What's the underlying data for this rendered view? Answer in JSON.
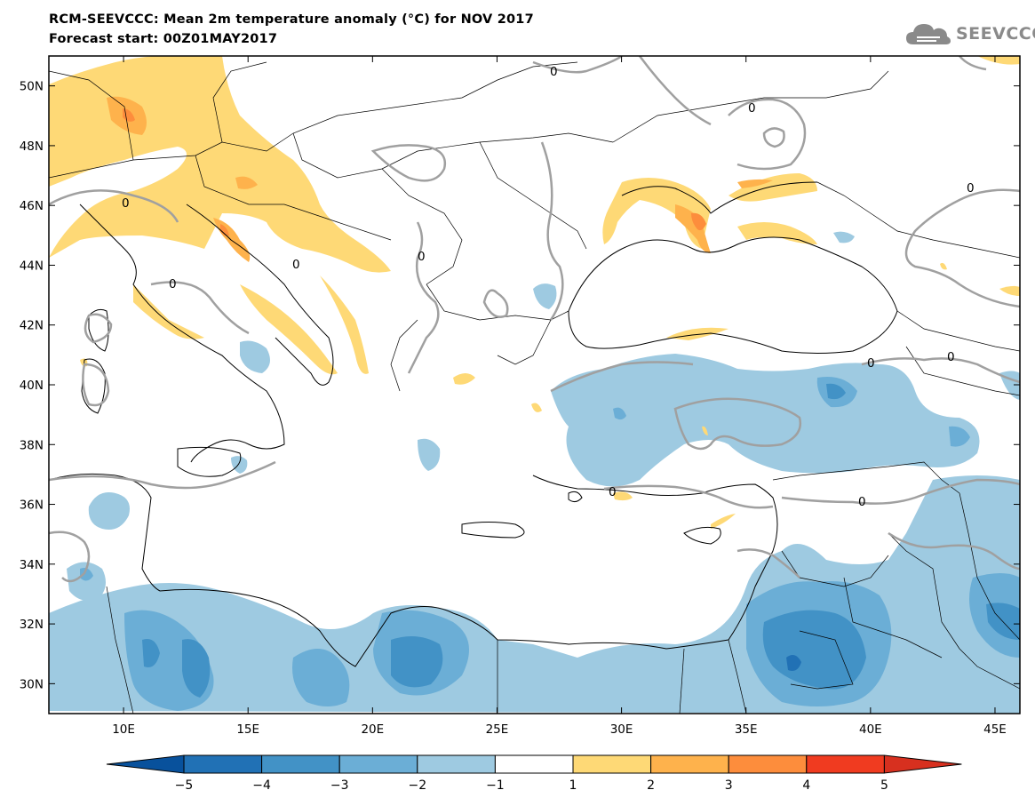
{
  "header": {
    "title": "RCM-SEEVCCC: Mean 2m temperature anomaly (°C) for NOV 2017",
    "subtitle": "Forecast start: 00Z01MAY2017",
    "logo_text": "SEEVCCC"
  },
  "map": {
    "lon_range": [
      7,
      46
    ],
    "lat_range": [
      29,
      51
    ],
    "lon_ticks": [
      "10E",
      "15E",
      "20E",
      "25E",
      "30E",
      "35E",
      "40E",
      "45E"
    ],
    "lat_ticks": [
      "50N",
      "48N",
      "46N",
      "44N",
      "42N",
      "40N",
      "38N",
      "36N",
      "34N",
      "32N",
      "30N"
    ],
    "contour_label": "0",
    "colors": {
      "cold_1_2": "#9ecae1",
      "cold_2_3": "#6baed6",
      "cold_3_4": "#4292c6",
      "cold_4_5": "#2171b5",
      "warm_1_2": "#fed976",
      "warm_2_3": "#feb24c",
      "warm_3_4": "#fd8d3c",
      "contour": "#a0a0a0"
    }
  },
  "colorbar": {
    "labels": [
      "-5",
      "-4",
      "-3",
      "-2",
      "-1",
      "1",
      "2",
      "3",
      "4",
      "5"
    ],
    "colors": [
      "#08519c",
      "#2171b5",
      "#4292c6",
      "#6baed6",
      "#9ecae1",
      "#ffffff",
      "#fed976",
      "#feb24c",
      "#fd8d3c",
      "#f03b20",
      "#d7301f"
    ]
  }
}
